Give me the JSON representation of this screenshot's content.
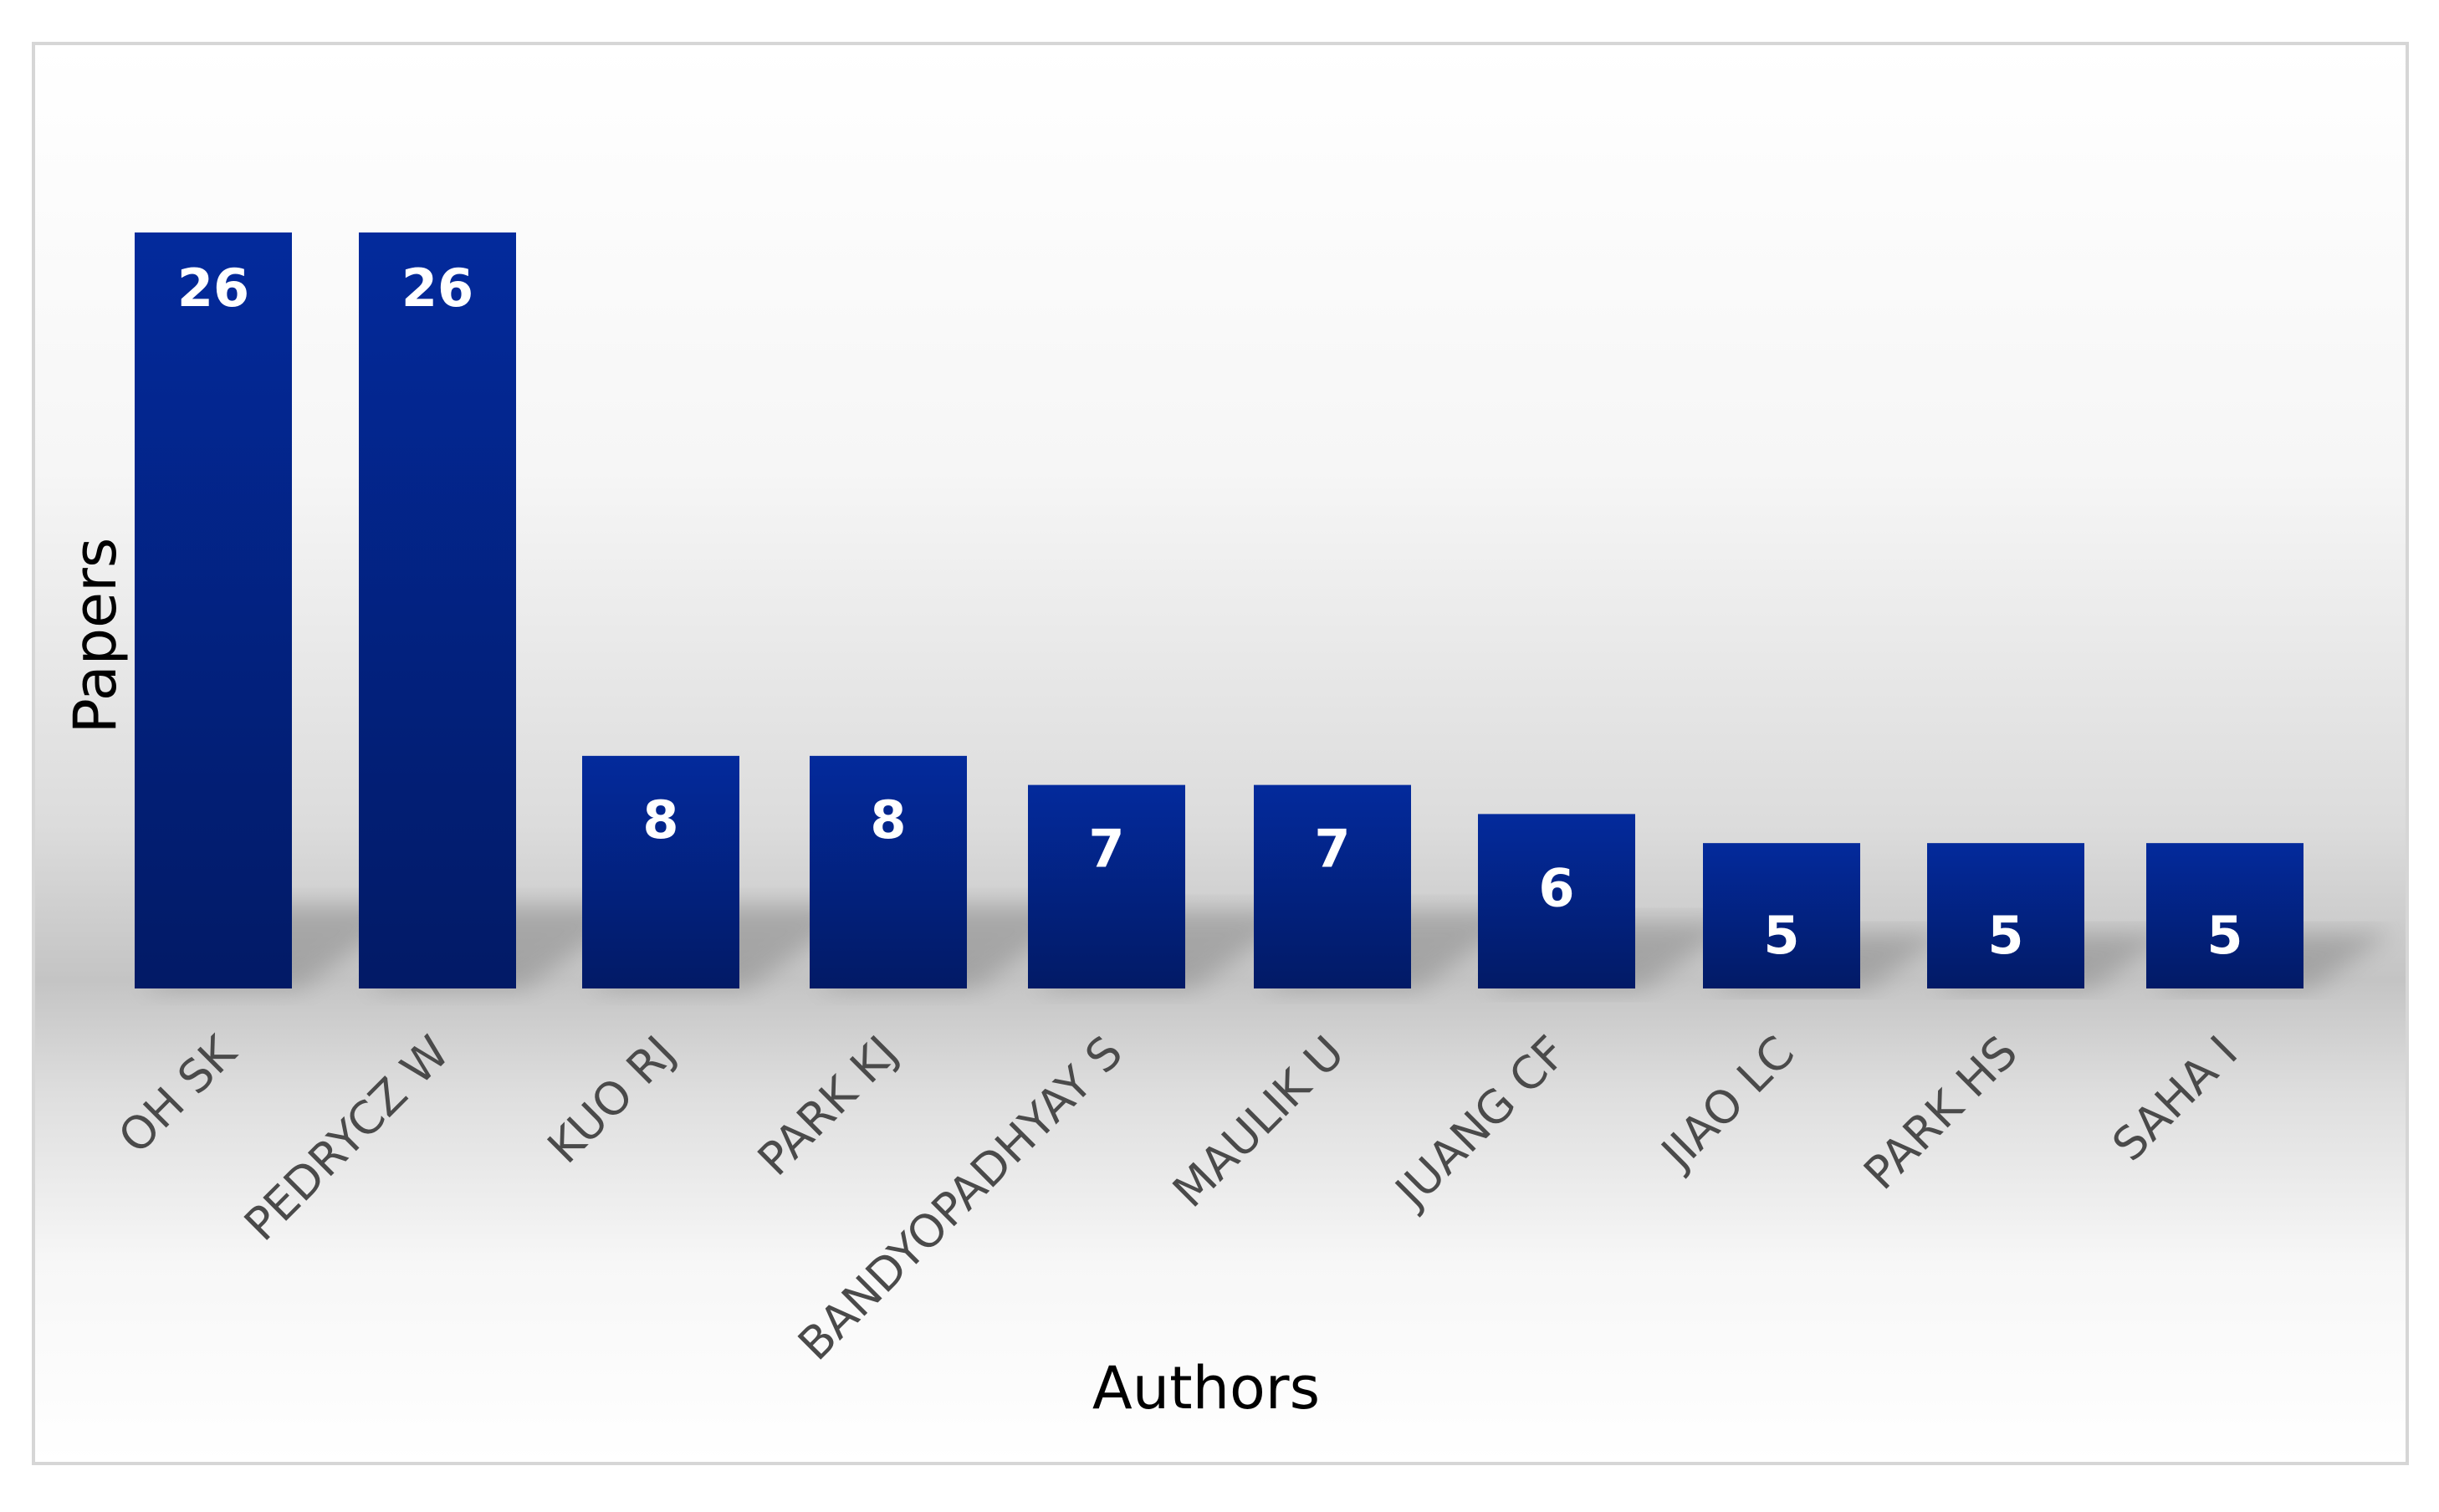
{
  "chart_data": {
    "type": "bar",
    "title": "",
    "xlabel": "Authors",
    "ylabel": "Papers",
    "categories": [
      "OH SK",
      "PEDRYCZ W",
      "KUO RJ",
      "PARK KJ",
      "BANDYOPADHYAY S",
      "MAULIK U",
      "JUANG CF",
      "JIAO LC",
      "PARK HS",
      "SAHA I"
    ],
    "values": [
      26,
      26,
      8,
      8,
      7,
      7,
      6,
      5,
      5,
      5
    ],
    "data_labels": [
      "26",
      "26",
      "8",
      "8",
      "7",
      "7",
      "6",
      "5",
      "5",
      "5"
    ],
    "ylim": [
      0,
      26
    ],
    "grid": false,
    "legend": "none",
    "colors": {
      "bar_top": "#032a9c",
      "bar_bottom": "#021a66",
      "bar_label": "#ffffff",
      "band_mid": "#c4c4c4",
      "frame": "#d6d6d6"
    }
  }
}
